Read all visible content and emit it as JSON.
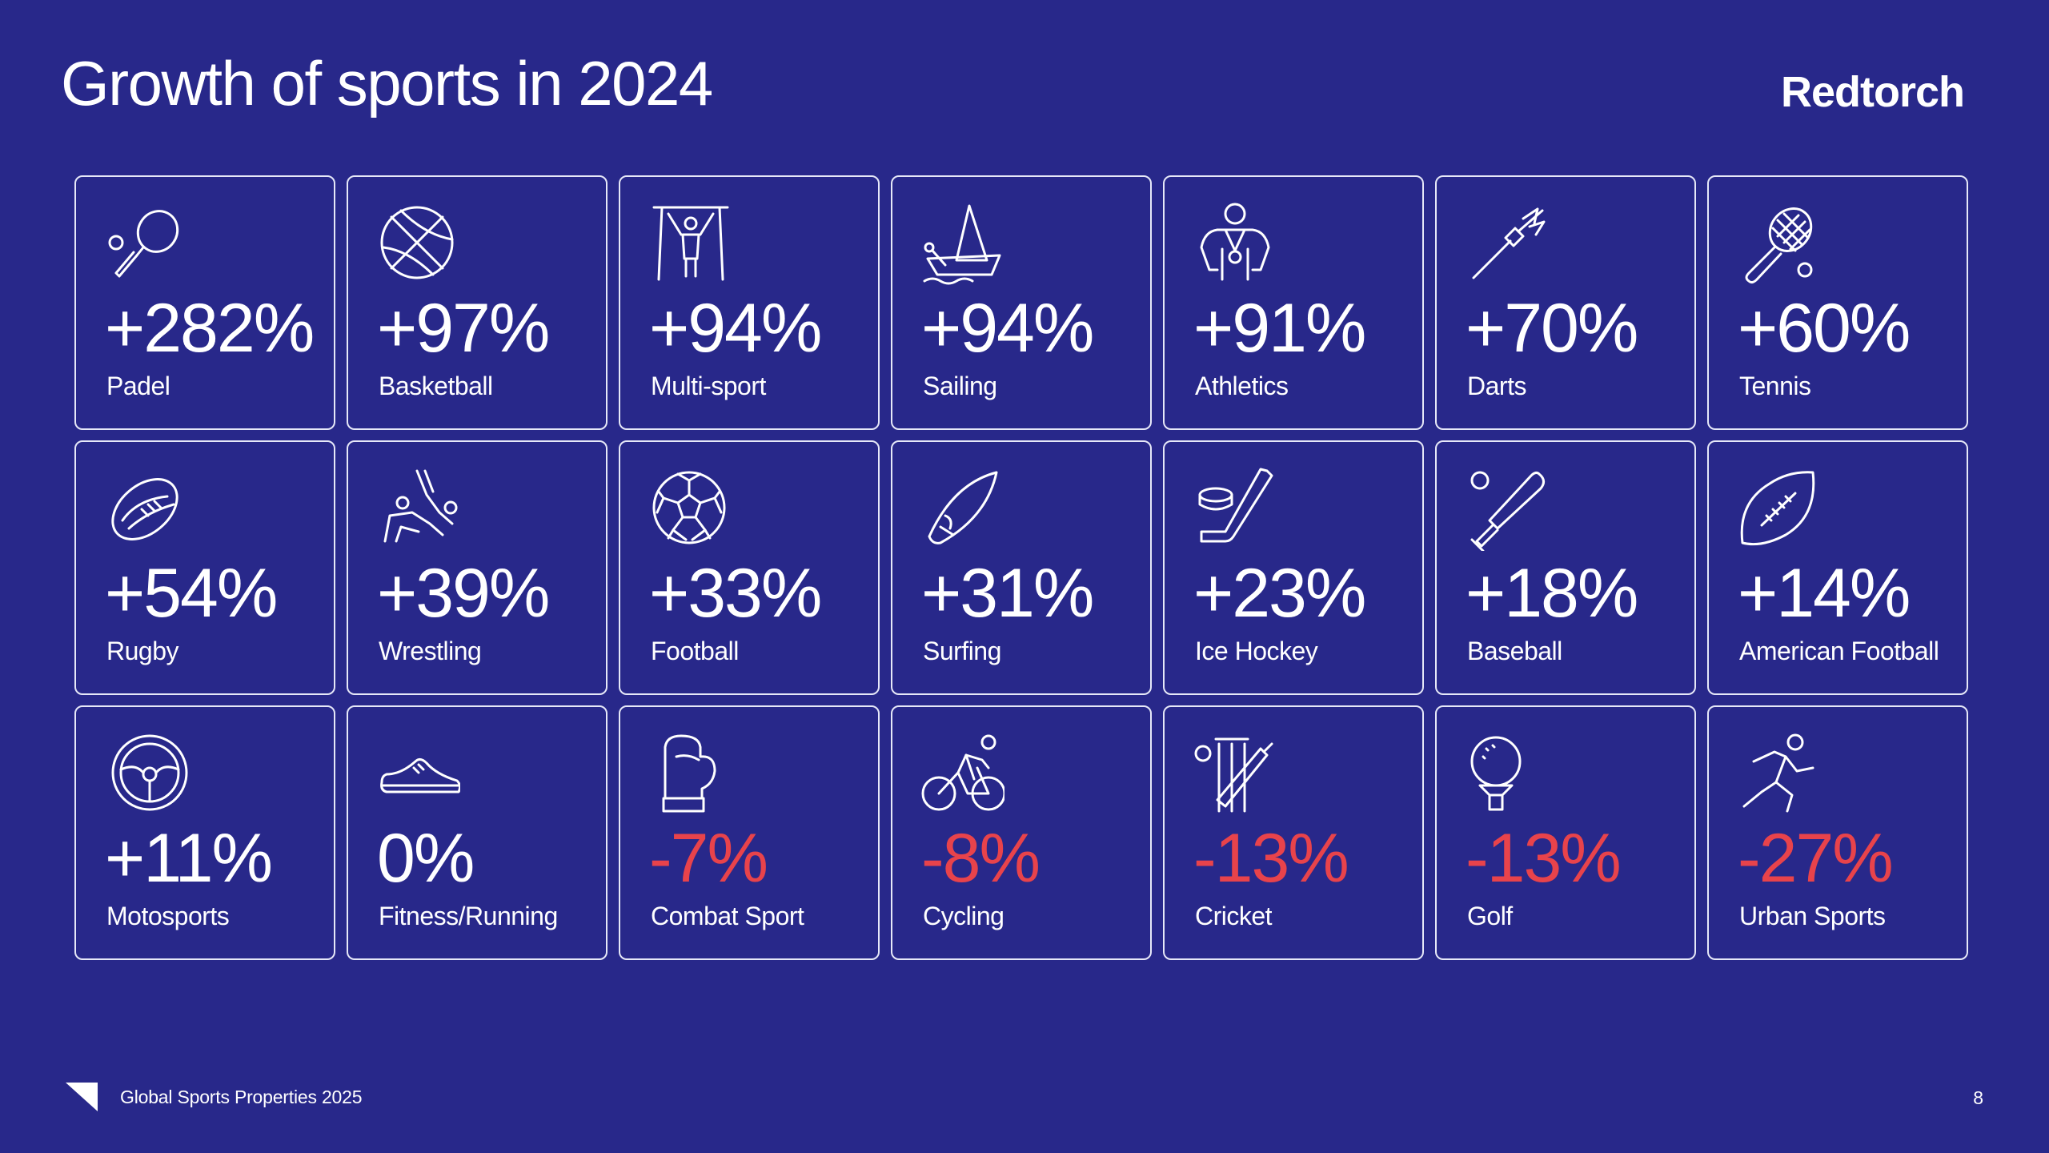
{
  "header": {
    "title": "Growth of sports in 2024",
    "brand": "Redtorch"
  },
  "colors": {
    "background": "#28288a",
    "positive": "#ffffff",
    "negative": "#e8434b",
    "card_border": "#e6e8f8"
  },
  "sports": [
    {
      "value": "+282%",
      "label": "Padel",
      "icon": "padel-icon",
      "negative": false
    },
    {
      "value": "+97%",
      "label": "Basketball",
      "icon": "basketball-icon",
      "negative": false
    },
    {
      "value": "+94%",
      "label": "Multi-sport",
      "icon": "gymnast-rings-icon",
      "negative": false
    },
    {
      "value": "+94%",
      "label": "Sailing",
      "icon": "sailboat-icon",
      "negative": false
    },
    {
      "value": "+91%",
      "label": "Athletics",
      "icon": "athlete-medal-icon",
      "negative": false
    },
    {
      "value": "+70%",
      "label": "Darts",
      "icon": "dart-icon",
      "negative": false
    },
    {
      "value": "+60%",
      "label": "Tennis",
      "icon": "tennis-racket-icon",
      "negative": false
    },
    {
      "value": "+54%",
      "label": "Rugby",
      "icon": "rugby-ball-icon",
      "negative": false
    },
    {
      "value": "+39%",
      "label": "Wrestling",
      "icon": "wrestlers-icon",
      "negative": false
    },
    {
      "value": "+33%",
      "label": "Football",
      "icon": "soccer-ball-icon",
      "negative": false
    },
    {
      "value": "+31%",
      "label": "Surfing",
      "icon": "surfboard-icon",
      "negative": false
    },
    {
      "value": "+23%",
      "label": "Ice Hockey",
      "icon": "hockey-stick-icon",
      "negative": false
    },
    {
      "value": "+18%",
      "label": "Baseball",
      "icon": "baseball-bat-icon",
      "negative": false
    },
    {
      "value": "+14%",
      "label": "American Football",
      "icon": "american-football-icon",
      "negative": false
    },
    {
      "value": "+11%",
      "label": "Motosports",
      "icon": "steering-wheel-icon",
      "negative": false
    },
    {
      "value": "0%",
      "label": "Fitness/Running",
      "icon": "sneaker-icon",
      "negative": false
    },
    {
      "value": "-7%",
      "label": "Combat Sport",
      "icon": "boxing-glove-icon",
      "negative": true
    },
    {
      "value": "-8%",
      "label": "Cycling",
      "icon": "cyclist-icon",
      "negative": true
    },
    {
      "value": "-13%",
      "label": "Cricket",
      "icon": "cricket-icon",
      "negative": true
    },
    {
      "value": "-13%",
      "label": "Golf",
      "icon": "golf-ball-icon",
      "negative": true
    },
    {
      "value": "-27%",
      "label": "Urban Sports",
      "icon": "runner-icon",
      "negative": true
    }
  ],
  "footer": {
    "text": "Global Sports Properties 2025",
    "page_number": "8"
  }
}
